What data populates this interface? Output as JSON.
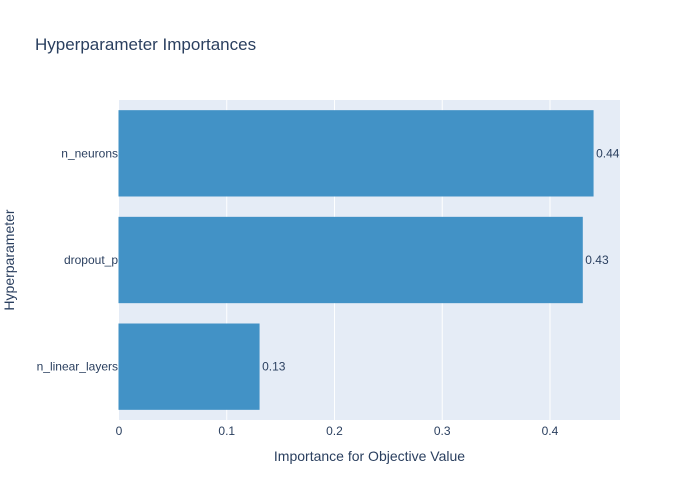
{
  "chart_data": {
    "type": "bar",
    "orientation": "horizontal",
    "title": "Hyperparameter Importances",
    "xlabel": "Importance for Objective Value",
    "ylabel": "Hyperparameter",
    "categories": [
      "n_linear_layers",
      "dropout_p",
      "n_neurons"
    ],
    "values": [
      0.13,
      0.43,
      0.44
    ],
    "value_labels": [
      "0.13",
      "0.43",
      "0.44"
    ],
    "xlim": [
      0,
      0.465
    ],
    "xticks": [
      0,
      0.1,
      0.2,
      0.3,
      0.4
    ],
    "xtick_labels": [
      "0",
      "0.1",
      "0.2",
      "0.3",
      "0.4"
    ],
    "grid": true,
    "bar_color": "#4292c6",
    "plot_background": "#e5ecf6",
    "text_color": "#2a3f5f"
  }
}
